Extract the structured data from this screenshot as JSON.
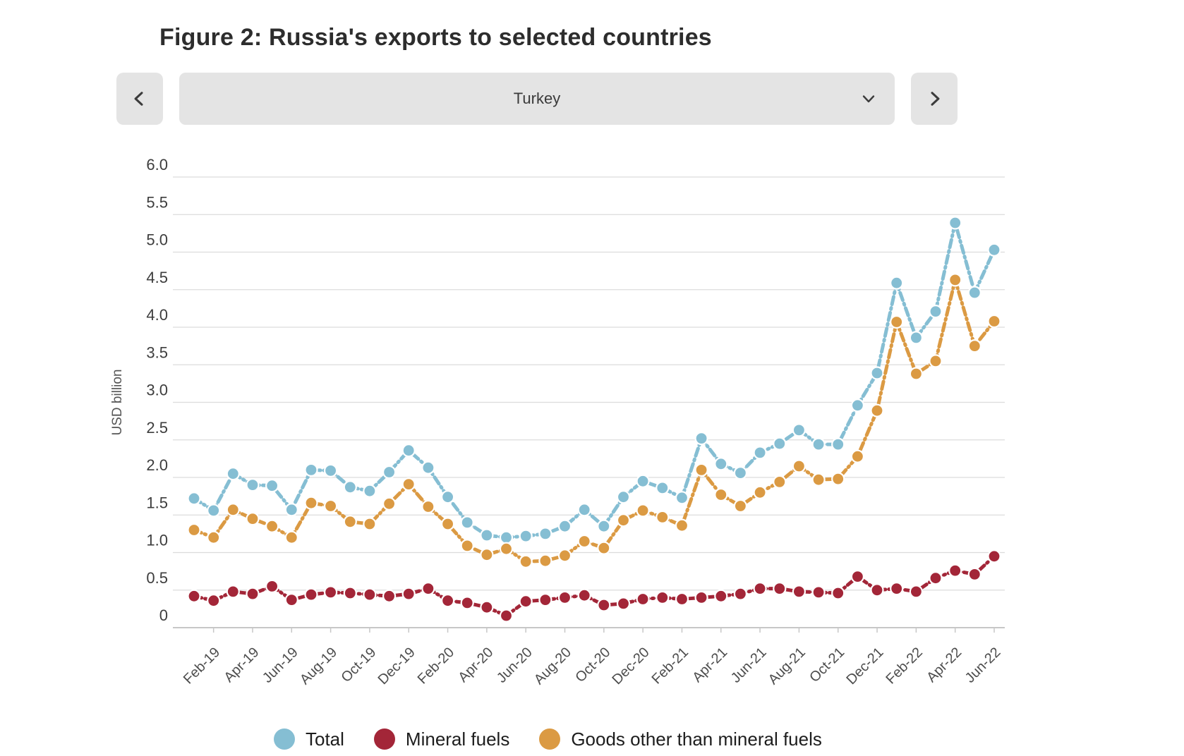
{
  "header": {
    "title": "Figure 2: Russia's exports to selected countries"
  },
  "controls": {
    "country": "Turkey"
  },
  "chart_data": {
    "type": "line",
    "title": "Figure 2: Russia's exports to selected countries",
    "subtitle_country": "Turkey",
    "xlabel": "",
    "ylabel": "USD billion",
    "ylim": [
      0,
      6.0
    ],
    "ytick_step": 0.5,
    "ytick_labels": [
      "6.0",
      "5.5",
      "5.0",
      "4.5",
      "4.0",
      "3.5",
      "3.0",
      "2.5",
      "2.0",
      "1.5",
      "1.0",
      "0.5",
      "0"
    ],
    "grid": true,
    "legend_position": "bottom",
    "x": [
      "Jan-19",
      "Feb-19",
      "Mar-19",
      "Apr-19",
      "May-19",
      "Jun-19",
      "Jul-19",
      "Aug-19",
      "Sep-19",
      "Oct-19",
      "Nov-19",
      "Dec-19",
      "Jan-20",
      "Feb-20",
      "Mar-20",
      "Apr-20",
      "May-20",
      "Jun-20",
      "Jul-20",
      "Aug-20",
      "Sep-20",
      "Oct-20",
      "Nov-20",
      "Dec-20",
      "Jan-21",
      "Feb-21",
      "Mar-21",
      "Apr-21",
      "May-21",
      "Jun-21",
      "Jul-21",
      "Aug-21",
      "Sep-21",
      "Oct-21",
      "Nov-21",
      "Dec-21",
      "Jan-22",
      "Feb-22",
      "Mar-22",
      "Apr-22",
      "May-22",
      "Jun-22"
    ],
    "x_tick_labels": [
      "Feb-19",
      "Apr-19",
      "Jun-19",
      "Aug-19",
      "Oct-19",
      "Dec-19",
      "Feb-20",
      "Apr-20",
      "Jun-20",
      "Aug-20",
      "Oct-20",
      "Dec-20",
      "Feb-21",
      "Apr-21",
      "Jun-21",
      "Aug-21",
      "Oct-21",
      "Dec-21",
      "Feb-22",
      "Apr-22",
      "Jun-22"
    ],
    "series": [
      {
        "name": "Total",
        "color": "#85bed3",
        "values": [
          1.72,
          1.56,
          2.05,
          1.9,
          1.89,
          1.57,
          2.1,
          2.09,
          1.87,
          1.82,
          2.07,
          2.36,
          2.13,
          1.74,
          1.4,
          1.23,
          1.2,
          1.22,
          1.25,
          1.35,
          1.57,
          1.35,
          1.74,
          1.95,
          1.86,
          1.73,
          2.52,
          2.18,
          2.06,
          2.33,
          2.45,
          2.63,
          2.44,
          2.44,
          2.96,
          3.39,
          4.59,
          3.86,
          4.21,
          5.39,
          4.46,
          5.03
        ]
      },
      {
        "name": "Mineral fuels",
        "color": "#a32638",
        "values": [
          0.42,
          0.36,
          0.48,
          0.45,
          0.55,
          0.37,
          0.44,
          0.47,
          0.46,
          0.44,
          0.42,
          0.45,
          0.52,
          0.36,
          0.33,
          0.27,
          0.16,
          0.35,
          0.37,
          0.4,
          0.43,
          0.3,
          0.32,
          0.38,
          0.4,
          0.38,
          0.4,
          0.42,
          0.45,
          0.52,
          0.52,
          0.48,
          0.47,
          0.46,
          0.68,
          0.5,
          0.52,
          0.48,
          0.66,
          0.76,
          0.71,
          0.95
        ]
      },
      {
        "name": "Goods other than mineral fuels",
        "color": "#db9a43",
        "values": [
          1.3,
          1.2,
          1.57,
          1.45,
          1.35,
          1.2,
          1.66,
          1.62,
          1.41,
          1.38,
          1.65,
          1.91,
          1.61,
          1.38,
          1.09,
          0.97,
          1.05,
          0.88,
          0.89,
          0.96,
          1.15,
          1.06,
          1.43,
          1.56,
          1.47,
          1.36,
          2.1,
          1.77,
          1.62,
          1.8,
          1.94,
          2.15,
          1.97,
          1.98,
          2.28,
          2.89,
          4.07,
          3.38,
          3.55,
          4.63,
          3.75,
          4.08
        ]
      }
    ],
    "colors": {
      "grid": "#dcdcdc",
      "axis": "#c7c7c7",
      "tick_text": "#4d4d4d",
      "ylabel_text": "#555555"
    }
  }
}
